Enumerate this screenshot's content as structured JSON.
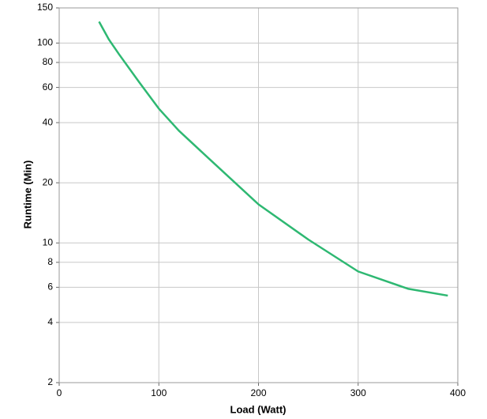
{
  "chart_data": {
    "type": "line",
    "x_label": "Load (Watt)",
    "y_label": "Runtime (Min)",
    "x": [
      40,
      50,
      60,
      80,
      100,
      120,
      150,
      200,
      250,
      300,
      350,
      390
    ],
    "series": [
      {
        "color": "#2eb872",
        "values": [
          128,
          104,
          88,
          64,
          47,
          36.5,
          26.5,
          15.6,
          10.4,
          7.2,
          5.9,
          5.45
        ]
      }
    ],
    "xlim": [
      0,
      400
    ],
    "xticks": [
      0,
      100,
      200,
      300,
      400
    ],
    "ylim": [
      2,
      150
    ],
    "yticks": [
      2,
      4,
      6,
      8,
      10,
      20,
      40,
      60,
      80,
      100,
      150
    ],
    "yscale": "log",
    "grid": true
  }
}
